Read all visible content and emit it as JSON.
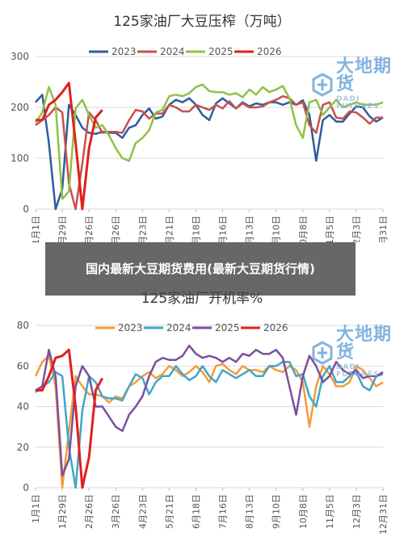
{
  "banner": {
    "text": "国内最新大豆期货费用(最新大豆期货行情)"
  },
  "watermark": {
    "cn": "大地期货",
    "en": "DADI FUTURES"
  },
  "chart_data": [
    {
      "type": "line",
      "title": "125家油厂大豆压榨（万吨）",
      "ylim": [
        0,
        300
      ],
      "yticks": [
        0,
        100,
        200,
        300
      ],
      "xlabels": [
        "1月1日",
        "1月29日",
        "2月26日",
        "3月26日",
        "4月23日",
        "5月21日",
        "6月18日",
        "7月16日",
        "8月13日",
        "9月10日",
        "10月8日",
        "11月5日",
        "12月3日",
        "12月31日"
      ],
      "n_weeks": 53,
      "grid": true,
      "legend_position": "top",
      "series": [
        {
          "name": "2023",
          "color": "#2e5c9e",
          "values": [
            210,
            225,
            130,
            0,
            40,
            205,
            185,
            160,
            150,
            148,
            152,
            150,
            150,
            140,
            160,
            165,
            185,
            198,
            178,
            182,
            205,
            215,
            210,
            218,
            205,
            185,
            175,
            208,
            218,
            208,
            198,
            210,
            202,
            208,
            205,
            210,
            210,
            205,
            210,
            205,
            214,
            185,
            95,
            175,
            185,
            172,
            172,
            188,
            202,
            200,
            182,
            172,
            180
          ]
        },
        {
          "name": "2024",
          "color": "#c8504f",
          "values": [
            165,
            175,
            185,
            200,
            190,
            50,
            0,
            90,
            190,
            175,
            150,
            152,
            152,
            150,
            175,
            195,
            192,
            178,
            188,
            188,
            205,
            200,
            192,
            192,
            205,
            200,
            195,
            205,
            198,
            212,
            198,
            208,
            200,
            200,
            202,
            210,
            215,
            222,
            218,
            205,
            210,
            165,
            150,
            205,
            210,
            180,
            178,
            192,
            190,
            180,
            168,
            180,
            180
          ]
        },
        {
          "name": "2025",
          "color": "#92c045",
          "values": [
            170,
            190,
            240,
            205,
            20,
            35,
            198,
            215,
            185,
            160,
            165,
            145,
            120,
            100,
            95,
            130,
            140,
            155,
            190,
            195,
            222,
            225,
            222,
            228,
            240,
            245,
            232,
            230,
            230,
            225,
            228,
            220,
            235,
            225,
            240,
            230,
            235,
            242,
            218,
            165,
            140,
            210,
            215,
            185,
            200,
            215,
            200,
            205,
            210,
            205,
            205,
            205,
            210
          ]
        },
        {
          "name": "2026",
          "color": "#e02020",
          "values": [
            175,
            175,
            205,
            215,
            230,
            248,
            130,
            0,
            120,
            180,
            195
          ]
        }
      ]
    },
    {
      "type": "line",
      "title": "125家油厂开机率%",
      "ylim": [
        0,
        80
      ],
      "yticks": [
        0,
        20,
        40,
        60,
        80
      ],
      "xlabels": [
        "1月1日",
        "1月29日",
        "2月26日",
        "3月26日",
        "4月23日",
        "5月21日",
        "6月18日",
        "7月16日",
        "8月13日",
        "9月10日",
        "10月8日",
        "11月5日",
        "12月3日",
        "12月31日"
      ],
      "n_weeks": 53,
      "grid": true,
      "legend_position": "top",
      "series": [
        {
          "name": "2023",
          "color": "#f59b3b",
          "values": [
            55,
            62,
            65,
            50,
            0,
            28,
            55,
            50,
            46,
            46,
            45,
            42,
            45,
            44,
            50,
            52,
            55,
            57,
            54,
            56,
            60,
            58,
            55,
            57,
            60,
            57,
            52,
            60,
            61,
            58,
            56,
            60,
            58,
            58,
            57,
            60,
            58,
            57,
            60,
            58,
            52,
            30,
            50,
            60,
            56,
            50,
            50,
            52,
            60,
            58,
            54,
            50,
            52
          ]
        },
        {
          "name": "2024",
          "color": "#3fa7c6",
          "values": [
            47,
            50,
            52,
            57,
            55,
            20,
            0,
            38,
            55,
            52,
            45,
            44,
            44,
            43,
            50,
            56,
            54,
            46,
            52,
            55,
            55,
            60,
            56,
            53,
            55,
            60,
            55,
            52,
            58,
            56,
            54,
            56,
            58,
            55,
            55,
            60,
            60,
            62,
            62,
            55,
            56,
            45,
            40,
            55,
            60,
            52,
            52,
            55,
            57,
            50,
            48,
            55,
            56
          ]
        },
        {
          "name": "2025",
          "color": "#7b4fa0",
          "values": [
            48,
            50,
            68,
            55,
            6,
            14,
            50,
            60,
            55,
            40,
            40,
            35,
            30,
            28,
            36,
            40,
            45,
            55,
            62,
            64,
            63,
            63,
            65,
            70,
            66,
            64,
            65,
            64,
            62,
            64,
            62,
            66,
            65,
            68,
            66,
            66,
            68,
            64,
            50,
            36,
            55,
            65,
            60,
            52,
            55,
            62,
            58,
            56,
            58,
            54,
            55,
            55,
            57
          ]
        },
        {
          "name": "2026",
          "color": "#e02020",
          "values": [
            48,
            48,
            55,
            64,
            65,
            68,
            40,
            0,
            15,
            48,
            54
          ]
        }
      ]
    }
  ]
}
